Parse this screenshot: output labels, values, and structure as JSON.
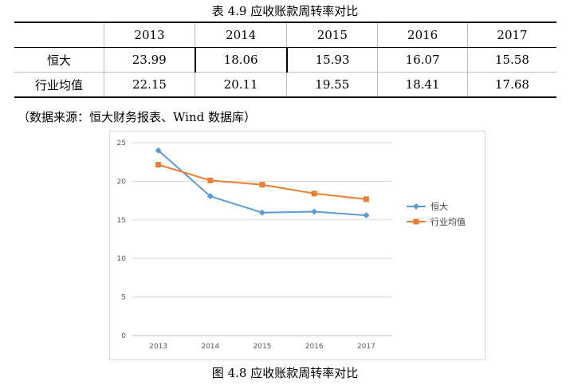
{
  "table": {
    "title": "表 4.9 应收账款周转率对比",
    "years": [
      "2013",
      "2014",
      "2015",
      "2016",
      "2017"
    ],
    "rows": [
      {
        "label": "恒大",
        "values": [
          "23.99",
          "18.06",
          "15.93",
          "16.07",
          "15.58"
        ]
      },
      {
        "label": "行业均值",
        "values": [
          "22.15",
          "20.11",
          "19.55",
          "18.41",
          "17.68"
        ]
      }
    ]
  },
  "source": "（数据来源：恒大财务报表、Wind 数据库）",
  "chart_data": {
    "type": "line",
    "categories": [
      "2013",
      "2014",
      "2015",
      "2016",
      "2017"
    ],
    "series": [
      {
        "name": "恒大",
        "values": [
          23.99,
          18.06,
          15.93,
          16.07,
          15.58
        ],
        "color": "#5b9bd5",
        "marker": "diamond"
      },
      {
        "name": "行业均值",
        "values": [
          22.15,
          20.11,
          19.55,
          18.41,
          17.68
        ],
        "color": "#ed7d31",
        "marker": "square"
      }
    ],
    "yticks": [
      "0",
      "5",
      "10",
      "15",
      "20",
      "25"
    ],
    "ylim": [
      0,
      25
    ],
    "grid": true,
    "legend": "right"
  },
  "caption": "图 4.8 应收账款周转率对比"
}
